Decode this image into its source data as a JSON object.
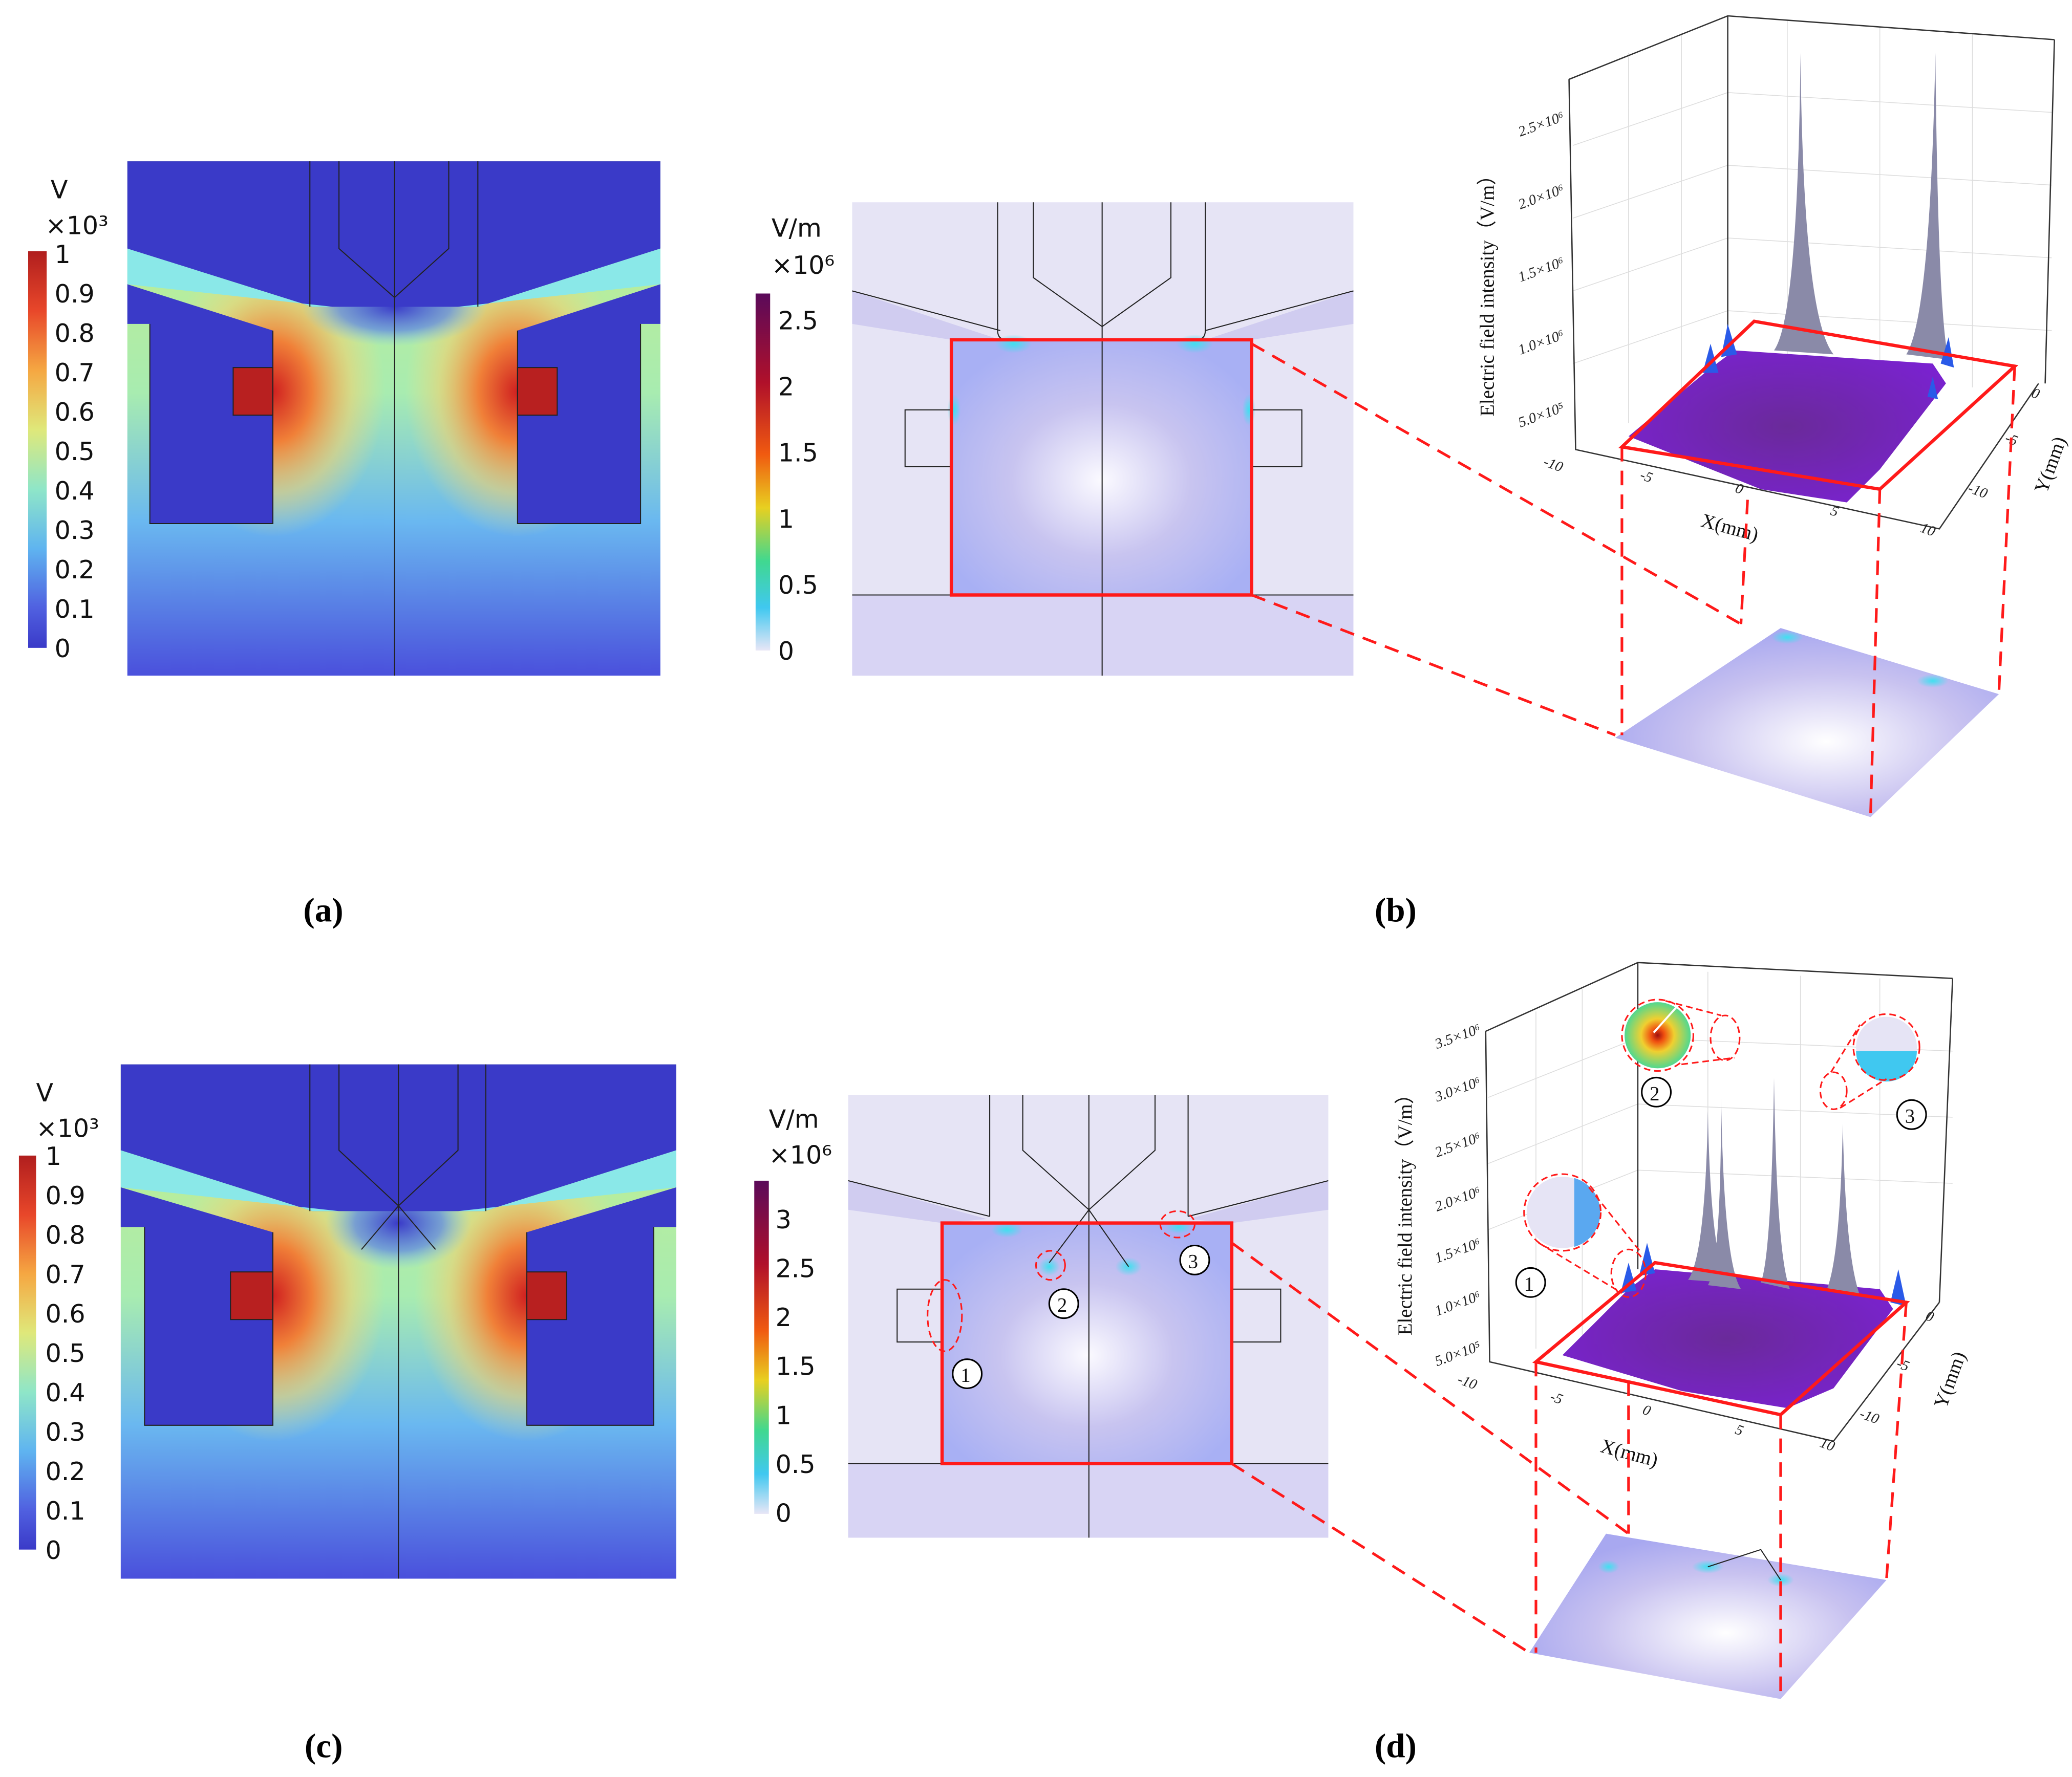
{
  "colors": {
    "highlight_red": "#ff1a1a",
    "potential_low": "#3a3ac8",
    "potential_high": "#b01e1e",
    "field_low": "#e8e6f6",
    "field_high": "#5a0a5a",
    "surface_purple": "#7a22c8"
  },
  "panels": {
    "a": {
      "label": "(a)",
      "colorbar": {
        "unit": "V",
        "multiplier": "×10³",
        "ticks": [
          "1",
          "0.9",
          "0.8",
          "0.7",
          "0.6",
          "0.5",
          "0.4",
          "0.3",
          "0.2",
          "0.1",
          "0"
        ]
      }
    },
    "b": {
      "label": "(b)",
      "colorbar": {
        "unit": "V/m",
        "multiplier": "×10⁶",
        "ticks": [
          "2.5",
          "2",
          "1.5",
          "1",
          "0.5",
          "0"
        ]
      },
      "plot3d": {
        "z_label": "Electric field intensity（V/m）",
        "z_ticks": [
          "2.5×10⁶",
          "2.0×10⁶",
          "1.5×10⁶",
          "1.0×10⁶",
          "5.0×10⁵"
        ],
        "x_label": "X(mm)",
        "x_ticks": [
          "-10",
          "-5",
          "0",
          "5",
          "10"
        ],
        "y_label": "Y(mm)",
        "y_ticks": [
          "0",
          "-5",
          "-10"
        ]
      }
    },
    "c": {
      "label": "(c)",
      "colorbar": {
        "unit": "V",
        "multiplier": "×10³",
        "ticks": [
          "1",
          "0.9",
          "0.8",
          "0.7",
          "0.6",
          "0.5",
          "0.4",
          "0.3",
          "0.2",
          "0.1",
          "0"
        ]
      }
    },
    "d": {
      "label": "(d)",
      "colorbar": {
        "unit": "V/m",
        "multiplier": "×10⁶",
        "ticks": [
          "3",
          "2.5",
          "2",
          "1.5",
          "1",
          "0.5",
          "0"
        ]
      },
      "callouts": [
        "1",
        "2",
        "3"
      ],
      "plot3d": {
        "z_label": "Electric field intensity（V/m）",
        "z_ticks": [
          "3.5×10⁶",
          "3.0×10⁶",
          "2.5×10⁶",
          "2.0×10⁶",
          "1.5×10⁶",
          "1.0×10⁶",
          "5.0×10⁵"
        ],
        "x_label": "X(mm)",
        "x_ticks": [
          "-10",
          "-5",
          "0",
          "5",
          "10"
        ],
        "y_label": "Y(mm)",
        "y_ticks": [
          "0",
          "-5",
          "-10"
        ]
      }
    }
  }
}
